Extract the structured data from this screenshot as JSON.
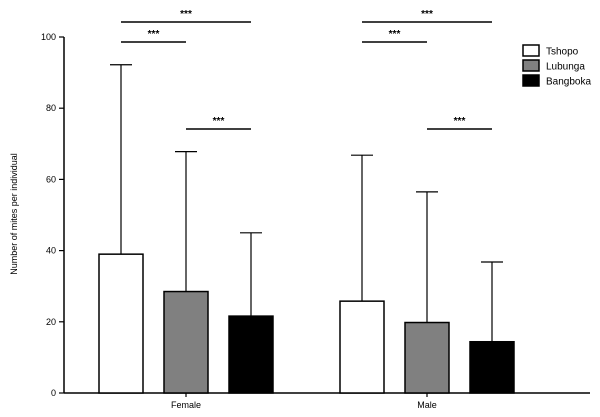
{
  "chart_data": {
    "type": "bar",
    "ylabel": "Number of mites per individual",
    "xlabel": "",
    "ylim": [
      0,
      100
    ],
    "yticks": [
      0,
      20,
      40,
      60,
      80,
      100
    ],
    "categories": [
      "Female",
      "Male"
    ],
    "series": [
      {
        "name": "Tshopo",
        "color": "#ffffff",
        "values": [
          39,
          25.8
        ],
        "errors_upper": [
          92.2,
          66.8
        ]
      },
      {
        "name": "Lubunga",
        "color": "#808080",
        "values": [
          28.5,
          19.8
        ],
        "errors_upper": [
          67.8,
          56.5
        ]
      },
      {
        "name": "Bangboka",
        "color": "#000000",
        "values": [
          21.6,
          14.4
        ],
        "errors_upper": [
          45,
          36.8
        ]
      }
    ],
    "significance": [
      {
        "category": "Female",
        "from": "Tshopo",
        "to": "Bangboka",
        "label": "***"
      },
      {
        "category": "Female",
        "from": "Tshopo",
        "to": "Lubunga",
        "label": "***"
      },
      {
        "category": "Female",
        "from": "Lubunga",
        "to": "Bangboka",
        "label": "***"
      },
      {
        "category": "Male",
        "from": "Tshopo",
        "to": "Bangboka",
        "label": "***"
      },
      {
        "category": "Male",
        "from": "Tshopo",
        "to": "Lubunga",
        "label": "***"
      },
      {
        "category": "Male",
        "from": "Lubunga",
        "to": "Bangboka",
        "label": "***"
      }
    ],
    "legend_position": "top-right"
  }
}
